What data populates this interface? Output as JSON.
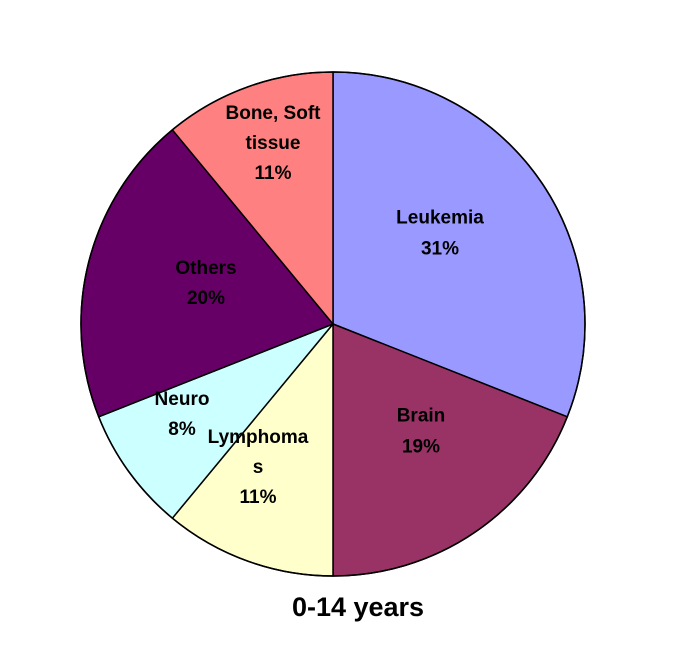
{
  "chart_data": {
    "type": "pie",
    "title": "0-14 years",
    "start_angle_deg": 0,
    "direction": "clockwise",
    "slices": [
      {
        "label": [
          "Leukemia"
        ],
        "value": 31,
        "value_label": "31%",
        "color": "#9999ff"
      },
      {
        "label": [
          "Brain"
        ],
        "value": 19,
        "value_label": "19%",
        "color": "#993366"
      },
      {
        "label": [
          "Lymphoma",
          "s"
        ],
        "value": 11,
        "value_label": "11%",
        "color": "#ffffcc"
      },
      {
        "label": [
          "Neuro"
        ],
        "value": 8,
        "value_label": "8%",
        "color": "#ccffff"
      },
      {
        "label": [
          "Others"
        ],
        "value": 20,
        "value_label": "20%",
        "color": "#660066"
      },
      {
        "label": [
          "Bone, Soft",
          "tissue"
        ],
        "value": 11,
        "value_label": "11%",
        "color": "#ff8080"
      }
    ]
  }
}
